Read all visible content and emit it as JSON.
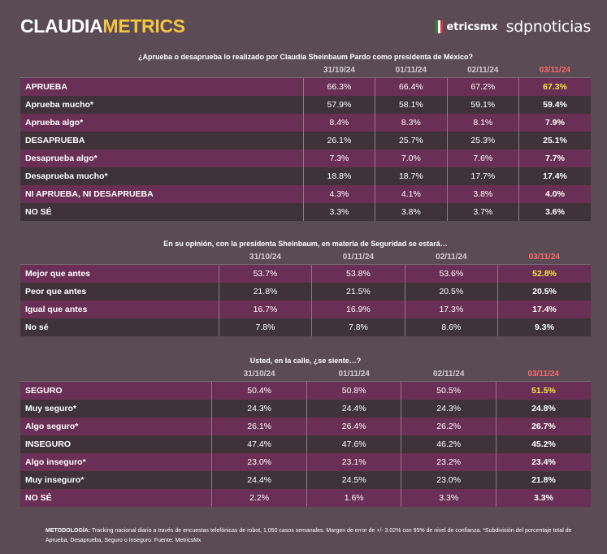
{
  "header": {
    "brand_part1": "CLAUDIA",
    "brand_part2": "METRICS",
    "partner1": "etricsmx",
    "partner2": "sdpnoticias"
  },
  "colors": {
    "accent": "#f5c542",
    "highlight": "#f5e642",
    "latest_date": "#ff6b6b",
    "row_odd": "#6a2f54",
    "row_even": "#3f3339"
  },
  "chart_data": [
    {
      "type": "table",
      "title": "¿Aprueba o desaprueba lo realizado por Claudia Sheinbaum Pardo como presidenta de México?",
      "columns": [
        "31/10/24",
        "01/11/24",
        "02/11/24",
        "03/11/24"
      ],
      "rows": [
        {
          "label": "APRUEBA",
          "values": [
            "66.3%",
            "66.4%",
            "67.2%",
            "67.3%"
          ],
          "highlight": true
        },
        {
          "label": "Aprueba mucho*",
          "values": [
            "57.9%",
            "58.1%",
            "59.1%",
            "59.4%"
          ]
        },
        {
          "label": "Aprueba algo*",
          "values": [
            "8.4%",
            "8.3%",
            "8.1%",
            "7.9%"
          ]
        },
        {
          "label": "DESAPRUEBA",
          "values": [
            "26.1%",
            "25.7%",
            "25.3%",
            "25.1%"
          ]
        },
        {
          "label": "Desaprueba algo*",
          "values": [
            "7.3%",
            "7.0%",
            "7.6%",
            "7.7%"
          ]
        },
        {
          "label": "Desaprueba mucho*",
          "values": [
            "18.8%",
            "18.7%",
            "17.7%",
            "17.4%"
          ]
        },
        {
          "label": "NI APRUEBA, NI DESAPRUEBA",
          "values": [
            "4.3%",
            "4.1%",
            "3.8%",
            "4.0%"
          ]
        },
        {
          "label": "NO SÉ",
          "values": [
            "3.3%",
            "3.8%",
            "3.7%",
            "3.6%"
          ]
        }
      ]
    },
    {
      "type": "table",
      "title": "En su opinión, con la presidenta Sheinbaum, en materia de Seguridad se estará…",
      "columns": [
        "31/10/24",
        "01/11/24",
        "02/11/24",
        "03/11/24"
      ],
      "rows": [
        {
          "label": "Mejor que antes",
          "values": [
            "53.7%",
            "53.8%",
            "53.6%",
            "52.8%"
          ],
          "highlight": true
        },
        {
          "label": "Peor que antes",
          "values": [
            "21.8%",
            "21.5%",
            "20.5%",
            "20.5%"
          ]
        },
        {
          "label": "Igual que antes",
          "values": [
            "16.7%",
            "16.9%",
            "17.3%",
            "17.4%"
          ]
        },
        {
          "label": "No sé",
          "values": [
            "7.8%",
            "7.8%",
            "8.6%",
            "9.3%"
          ]
        }
      ]
    },
    {
      "type": "table",
      "title": "Usted, en la calle, ¿se siente…?",
      "columns": [
        "31/10/24",
        "01/11/24",
        "02/11/24",
        "03/11/24"
      ],
      "rows": [
        {
          "label": "SEGURO",
          "values": [
            "50.4%",
            "50.8%",
            "50.5%",
            "51.5%"
          ],
          "highlight": true
        },
        {
          "label": "Muy seguro*",
          "values": [
            "24.3%",
            "24.4%",
            "24.3%",
            "24.8%"
          ]
        },
        {
          "label": "Algo seguro*",
          "values": [
            "26.1%",
            "26.4%",
            "26.2%",
            "26.7%"
          ]
        },
        {
          "label": "INSEGURO",
          "values": [
            "47.4%",
            "47.6%",
            "46.2%",
            "45.2%"
          ]
        },
        {
          "label": "Algo inseguro*",
          "values": [
            "23.0%",
            "23.1%",
            "23.2%",
            "23.4%"
          ]
        },
        {
          "label": "Muy inseguro*",
          "values": [
            "24.4%",
            "24.5%",
            "23.0%",
            "21.8%"
          ]
        },
        {
          "label": "NO SÉ",
          "values": [
            "2.2%",
            "1.6%",
            "3.3%",
            "3.3%"
          ]
        }
      ]
    }
  ],
  "note": {
    "label": "METODOLOGÍA:",
    "text": "Tracking nacional diario a través de encuestas telefónicas de robot, 1,050 casos semanales. Margen de error de +/- 3.02% con 95% de nivel de confianza. *Subdivisión del porcentaje total de Aprueba, Desaprueba, Seguro o Inseguro. Fuente: MetricsMx"
  }
}
